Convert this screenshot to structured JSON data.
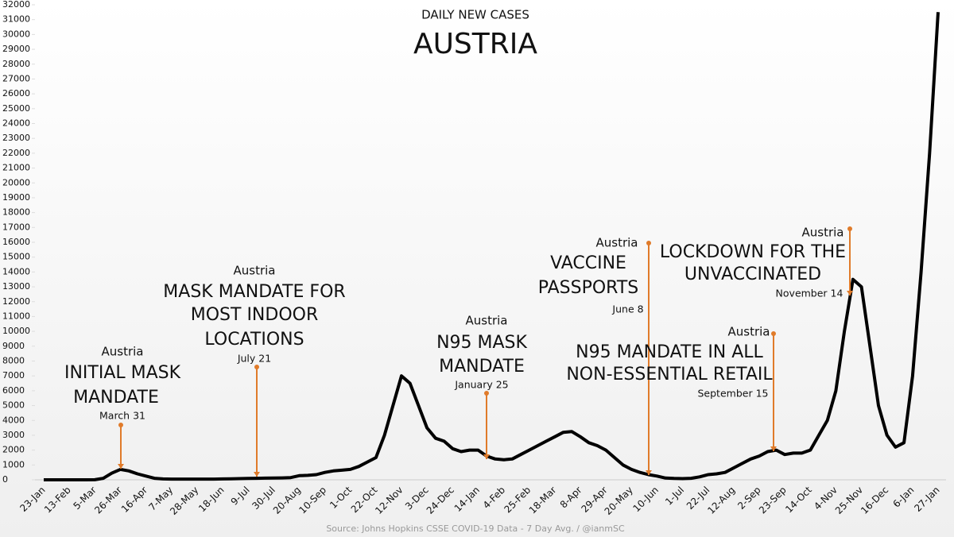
{
  "chart_data": {
    "type": "line",
    "subtitle": "DAILY NEW CASES",
    "title": "AUSTRIA",
    "source": "Source: Johns Hopkins CSSE COVID-19 Data - 7 Day Avg. / @ianmSC",
    "categories": [
      "23-Jan",
      null,
      null,
      "13-Feb",
      null,
      null,
      "5-Mar",
      null,
      null,
      "26-Mar",
      null,
      null,
      "16-Apr",
      null,
      null,
      "7-May",
      null,
      null,
      "28-May",
      null,
      null,
      "18-Jun",
      null,
      null,
      "9-Jul",
      null,
      null,
      "30-Jul",
      null,
      null,
      "20-Aug",
      null,
      null,
      "10-Sep",
      null,
      null,
      "1-Oct",
      null,
      null,
      "22-Oct",
      null,
      null,
      "12-Nov",
      null,
      null,
      "3-Dec",
      null,
      null,
      "24-Dec",
      null,
      null,
      "14-Jan",
      null,
      null,
      "4-Feb",
      null,
      null,
      "25-Feb",
      null,
      null,
      "18-Mar",
      null,
      null,
      "8-Apr",
      null,
      null,
      "29-Apr",
      null,
      null,
      "20-May",
      null,
      null,
      "10-Jun",
      null,
      null,
      "1-Jul",
      null,
      null,
      "22-Jul",
      null,
      null,
      "12-Aug",
      null,
      null,
      "2-Sep",
      null,
      null,
      "23-Sep",
      null,
      null,
      "14-Oct",
      null,
      null,
      "4-Nov",
      null,
      null,
      "25-Nov",
      null,
      null,
      "16-Dec",
      null,
      null,
      "6-Jan",
      null,
      null,
      "27-Jan"
    ],
    "series": [
      {
        "name": "Austria",
        "color": "#000000",
        "values": [
          0,
          0,
          0,
          0,
          0,
          0,
          5,
          100,
          450,
          700,
          600,
          400,
          250,
          100,
          60,
          50,
          50,
          50,
          50,
          50,
          50,
          60,
          70,
          80,
          90,
          100,
          110,
          120,
          130,
          150,
          280,
          300,
          350,
          500,
          600,
          650,
          700,
          900,
          1200,
          1500,
          3000,
          5000,
          7000,
          6500,
          5000,
          3500,
          2800,
          2600,
          2100,
          1900,
          2000,
          2000,
          1600,
          1400,
          1350,
          1400,
          1700,
          2000,
          2300,
          2600,
          2900,
          3200,
          3250,
          2900,
          2500,
          2300,
          2000,
          1500,
          1000,
          700,
          500,
          350,
          250,
          120,
          90,
          80,
          100,
          200,
          350,
          400,
          500,
          800,
          1100,
          1400,
          1600,
          1900,
          2000,
          1700,
          1800,
          1800,
          2000,
          3000,
          4000,
          6000,
          10000,
          13500,
          13000,
          9000,
          5000,
          3000,
          2200,
          2500,
          7000,
          14000,
          22000,
          31500
        ]
      }
    ],
    "ylim": [
      0,
      32000
    ],
    "yticks": [
      0,
      1000,
      2000,
      3000,
      4000,
      5000,
      6000,
      7000,
      8000,
      9000,
      10000,
      11000,
      12000,
      13000,
      14000,
      15000,
      16000,
      17000,
      18000,
      19000,
      20000,
      21000,
      22000,
      23000,
      24000,
      25000,
      26000,
      27000,
      28000,
      29000,
      30000,
      31000,
      32000
    ],
    "annotations": [
      {
        "location": "Austria",
        "lines": [
          "INITIAL MASK",
          "MANDATE"
        ],
        "date": "March 31"
      },
      {
        "location": "Austria",
        "lines": [
          "MASK MANDATE FOR",
          "MOST INDOOR",
          "LOCATIONS"
        ],
        "date": "July 21"
      },
      {
        "location": "Austria",
        "lines": [
          "N95 MASK",
          "MANDATE"
        ],
        "date": "January 25"
      },
      {
        "location": "Austria",
        "lines": [
          "VACCINE",
          "PASSPORTS"
        ],
        "date": "June 8"
      },
      {
        "location": "Austria",
        "lines": [
          "N95 MANDATE IN ALL",
          "NON-ESSENTIAL RETAIL"
        ],
        "date": "September 15"
      },
      {
        "location": "Austria",
        "lines": [
          "LOCKDOWN FOR THE",
          "UNVACCINATED"
        ],
        "date": "November 14"
      }
    ]
  }
}
